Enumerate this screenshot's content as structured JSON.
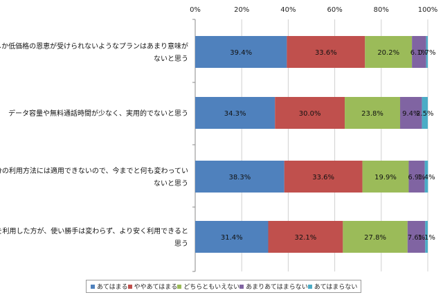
{
  "chart_data": {
    "type": "bar",
    "orientation": "horizontal",
    "stacked": true,
    "percent": true,
    "title": "",
    "xlim": [
      0,
      100
    ],
    "x_ticks": [
      "0%",
      "20%",
      "40%",
      "60%",
      "80%",
      "100%"
    ],
    "legend_position": "bottom",
    "grid": "vertical",
    "categories": [
      [
        "一部の人しか低価格の恩恵が受けられないようなプランはあまり意味が",
        "ないと思う"
      ],
      [
        "データ容量や無料通話時間が少なく、実用的でないと思う"
      ],
      [
        "現在の自分の利用方法には適用できないので、今までと何も変わってい",
        "ないと思う"
      ],
      [
        "格安SIMを利用した方が、使い勝手は変わらず、より安く利用できると",
        "思う"
      ]
    ],
    "series": [
      {
        "name": "あてはまる",
        "color": "#4f81bd",
        "values": [
          39.4,
          34.3,
          38.3,
          31.4
        ],
        "labels": [
          "39.4%",
          "34.3%",
          "38.3%",
          "31.4%"
        ]
      },
      {
        "name": "ややあてはまる",
        "color": "#c0504d",
        "values": [
          33.6,
          30.0,
          33.6,
          32.1
        ],
        "labels": [
          "33.6%",
          "30.0%",
          "33.6%",
          "32.1%"
        ]
      },
      {
        "name": "どちらともいえない",
        "color": "#9bbb59",
        "values": [
          20.2,
          23.8,
          19.9,
          27.8
        ],
        "labels": [
          "20.2%",
          "23.8%",
          "19.9%",
          "27.8%"
        ]
      },
      {
        "name": "あまりあてはまらない",
        "color": "#8064a2",
        "values": [
          6.1,
          9.4,
          6.9,
          7.6
        ],
        "labels": [
          "6.1%",
          "9.4%",
          "6.9%",
          "7.6%"
        ]
      },
      {
        "name": "あてはまらない",
        "color": "#4bacc6",
        "values": [
          0.7,
          2.5,
          1.4,
          1.1
        ],
        "labels": [
          "0.7%",
          "2.5%",
          "1.4%",
          "1.1%"
        ]
      }
    ]
  }
}
